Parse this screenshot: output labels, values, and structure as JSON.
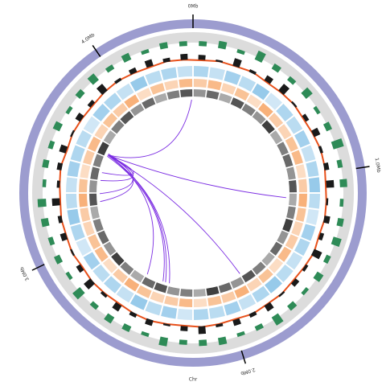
{
  "chart_data": {
    "type": "circos",
    "title": "Chr",
    "xlim": [
      0,
      4.42
    ],
    "xticks": [
      {
        "value": 0,
        "label": "0Mb"
      },
      {
        "value": 1,
        "label": "1.0Mb"
      },
      {
        "value": 2,
        "label": "2.0Mb"
      },
      {
        "value": 3,
        "label": "3.0Mb"
      },
      {
        "value": 4,
        "label": "4.0Mb"
      }
    ],
    "ideogram_color": "#9c9ccf",
    "ring_color": "#dcdcdc",
    "ylim": [
      0,
      1
    ],
    "series": [
      {
        "style": "histogram",
        "color": "#2e8b57",
        "values": [
          0.4,
          0.6,
          0.3,
          0.8,
          0.5,
          0.4,
          0.7,
          0.3,
          0.5,
          0.9,
          0.4,
          0.6,
          0.3,
          0.5,
          0.7,
          0.4,
          0.6,
          0.3,
          0.5,
          0.8,
          0.4,
          0.3,
          0.6,
          0.5,
          0.4,
          0.7,
          0.3,
          0.5,
          0.6,
          0.4,
          0.8,
          0.3,
          0.5,
          0.4,
          0.6,
          0.7,
          0.3,
          0.5,
          0.4,
          0.6,
          0.3,
          0.5,
          0.7,
          0.4,
          0.6,
          0.3,
          0.5,
          0.4
        ]
      },
      {
        "style": "line",
        "color": "#e8501a",
        "values": [
          0.3,
          0.5,
          0.4,
          0.6,
          0.3,
          0.4,
          0.5,
          0.3,
          0.4,
          0.6,
          0.5,
          0.3,
          0.4,
          0.5,
          0.3,
          0.6,
          0.4,
          0.3,
          0.5,
          0.4,
          0.6,
          0.3,
          0.4,
          0.5,
          0.3,
          0.4,
          0.6,
          0.5,
          0.3,
          0.4,
          0.5,
          0.3,
          0.6,
          0.4,
          0.5,
          0.3,
          0.4,
          0.6,
          0.3,
          0.5,
          0.4,
          0.3,
          0.5,
          0.6,
          0.4,
          0.3,
          0.5,
          0.4
        ]
      },
      {
        "style": "histogram",
        "color": "#1a1a1a",
        "values": [
          0.5,
          0.2,
          0.8,
          0.3,
          0.6,
          0.9,
          0.2,
          0.4,
          0.7,
          0.3,
          0.5,
          0.8,
          0.2,
          0.6,
          0.4,
          0.9,
          0.3,
          0.5,
          0.2,
          0.7,
          0.4,
          0.6,
          0.3,
          0.8,
          0.5,
          0.2,
          0.6,
          0.4,
          0.7,
          0.3,
          0.9,
          0.5,
          0.2,
          0.6,
          0.4,
          0.8,
          0.3,
          0.5,
          0.7,
          0.2,
          0.6,
          0.4,
          0.9,
          0.3,
          0.5,
          0.7,
          0.4,
          0.6
        ]
      },
      {
        "style": "tiles",
        "color": "#8cc4e8",
        "values": [
          0.7,
          0.5,
          0.8,
          0.6,
          0.9,
          0.4,
          0.7,
          0.6,
          0.8,
          0.5,
          0.7,
          0.9,
          0.6,
          0.4,
          0.8,
          0.7,
          0.5,
          0.6,
          0.9,
          0.7,
          0.5,
          0.8,
          0.6,
          0.7,
          0.4,
          0.8,
          0.6,
          0.9,
          0.5,
          0.7,
          0.6,
          0.8,
          0.4,
          0.7,
          0.9,
          0.6,
          0.5,
          0.8,
          0.7,
          0.6,
          0.4,
          0.8,
          0.7,
          0.5,
          0.9,
          0.6,
          0.7,
          0.5
        ]
      },
      {
        "style": "tiles",
        "color": "#f7a96b",
        "values": [
          0.6,
          0.8,
          0.5,
          0.7,
          0.4,
          0.9,
          0.6,
          0.5,
          0.7,
          0.8,
          0.4,
          0.6,
          0.9,
          0.7,
          0.5,
          0.6,
          0.8,
          0.4,
          0.7,
          0.5,
          0.9,
          0.6,
          0.7,
          0.4,
          0.8,
          0.6,
          0.5,
          0.7,
          0.9,
          0.6,
          0.4,
          0.8,
          0.7,
          0.5,
          0.6,
          0.9,
          0.7,
          0.4,
          0.6,
          0.8,
          0.5,
          0.7,
          0.6,
          0.9,
          0.4,
          0.7,
          0.5,
          0.8
        ]
      },
      {
        "style": "tiles",
        "color": "#2a2a2a",
        "values": [
          0.5,
          0.7,
          0.4,
          0.8,
          0.6,
          0.5,
          0.9,
          0.4,
          0.6,
          0.7,
          0.5,
          0.8,
          0.4,
          0.6,
          0.9,
          0.5,
          0.7,
          0.4,
          0.6,
          0.8,
          0.5,
          0.7,
          0.9,
          0.4,
          0.6,
          0.5,
          0.8,
          0.7,
          0.4,
          0.6,
          0.9,
          0.5,
          0.7,
          0.6,
          0.4,
          0.8,
          0.5,
          0.7,
          0.6,
          0.9,
          0.4,
          0.6,
          0.8,
          0.5,
          0.7,
          0.4,
          0.6,
          0.8
        ]
      }
    ],
    "link_color": "#7a2be2",
    "links": [
      [
        3.61,
        4.41
      ],
      [
        3.61,
        1.14
      ],
      [
        3.61,
        1.84
      ],
      [
        3.61,
        2.39
      ],
      [
        3.61,
        2.42
      ],
      [
        3.61,
        2.57
      ],
      [
        3.61,
        3.31
      ],
      [
        3.61,
        3.41
      ],
      [
        3.61,
        3.47
      ],
      [
        3.6,
        2.44
      ],
      [
        3.62,
        3.25
      ]
    ]
  }
}
